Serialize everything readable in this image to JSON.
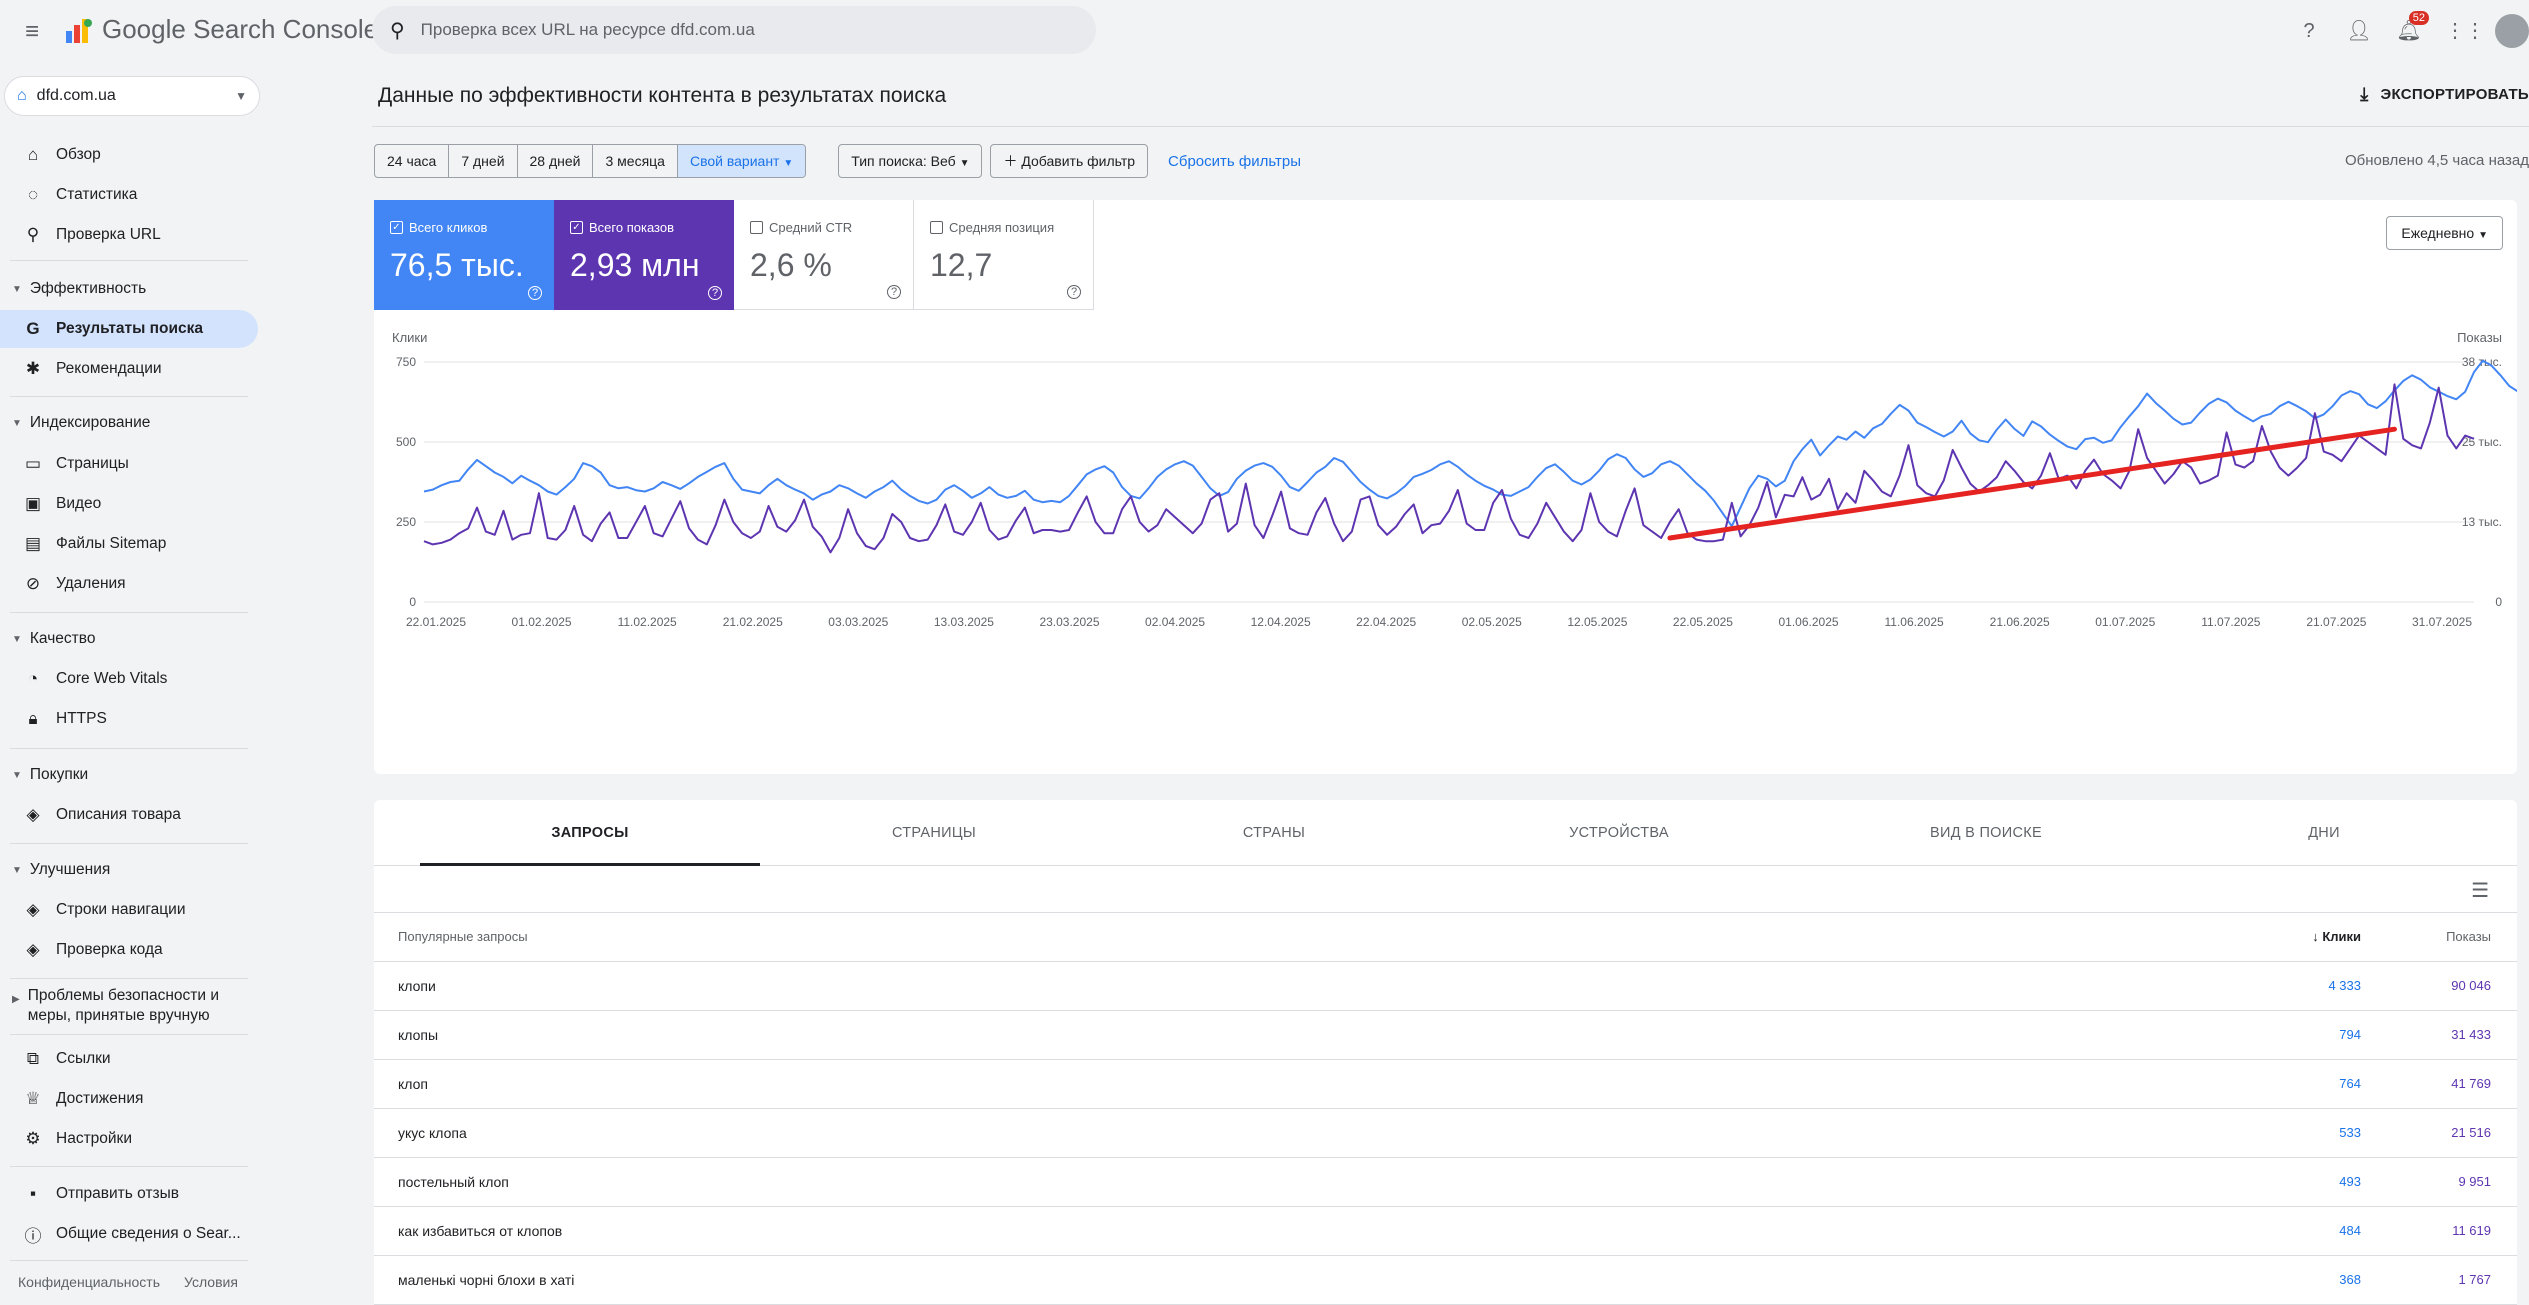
{
  "app": {
    "name": "Google Search Console"
  },
  "property": {
    "name": "dfd.com.ua"
  },
  "search": {
    "placeholder": "Проверка всех URL на ресурсе dfd.com.ua"
  },
  "notifications": {
    "count": "52"
  },
  "sidebar": {
    "overview": "Обзор",
    "stats": "Статистика",
    "url_check": "Проверка URL",
    "sections": {
      "performance": "Эффективность",
      "indexing": "Индексирование",
      "quality": "Качество",
      "shopping": "Покупки",
      "enhancements": "Улучшения",
      "security": "Проблемы безопасности и меры, принятые вручную"
    },
    "items": {
      "search_results": "Результаты поиска",
      "recommendations": "Рекомендации",
      "pages": "Страницы",
      "video": "Видео",
      "sitemaps": "Файлы Sitemap",
      "removals": "Удаления",
      "cwv": "Core Web Vitals",
      "https": "HTTPS",
      "product_snippets": "Описания товара",
      "breadcrumbs": "Строки навигации",
      "code_check": "Проверка кода",
      "links": "Ссылки",
      "achievements": "Достижения",
      "settings": "Настройки",
      "feedback": "Отправить отзыв",
      "about": "Общие сведения о Sear..."
    },
    "footer": {
      "privacy": "Конфиденциальность",
      "terms": "Условия"
    }
  },
  "page": {
    "title": "Данные по эффективности контента в результатах поиска",
    "export": "ЭКСПОРТИРОВАТЬ",
    "updated": "Обновлено 4,5 часа назад"
  },
  "filters": {
    "ranges": [
      "24 часа",
      "7 дней",
      "28 дней",
      "3 месяца",
      "Свой вариант"
    ],
    "search_type": "Тип поиска: Веб",
    "add_filter": "Добавить фильтр",
    "reset": "Сбросить фильтры"
  },
  "metrics": [
    {
      "label": "Всего кликов",
      "value": "76,5 тыс.",
      "checked": true
    },
    {
      "label": "Всего показов",
      "value": "2,93 млн",
      "checked": true
    },
    {
      "label": "Средний CTR",
      "value": "2,6 %",
      "checked": false
    },
    {
      "label": "Средняя позиция",
      "value": "12,7",
      "checked": false
    }
  ],
  "granularity": "Ежедневно",
  "chart_data": {
    "type": "line",
    "left_axis_label": "Клики",
    "right_axis_label": "Показы",
    "left_ticks": [
      "750",
      "500",
      "250",
      "0"
    ],
    "right_ticks": [
      "38 тыс.",
      "25 тыс.",
      "13 тыс.",
      "0"
    ],
    "x_ticks": [
      "22.01.2025",
      "01.02.2025",
      "11.02.2025",
      "21.02.2025",
      "03.03.2025",
      "13.03.2025",
      "23.03.2025",
      "02.04.2025",
      "12.04.2025",
      "22.04.2025",
      "02.05.2025",
      "12.05.2025",
      "22.05.2025",
      "01.06.2025",
      "11.06.2025",
      "21.06.2025",
      "01.07.2025",
      "11.07.2025",
      "21.07.2025",
      "31.07.2025"
    ],
    "ylim_left": [
      0,
      750
    ],
    "ylim_right": [
      0,
      38000
    ],
    "colors": {
      "clicks": "#5e35b1",
      "impressions": "#4285f4",
      "trend": "#e52421"
    },
    "series": [
      {
        "name": "Клики",
        "axis": "left",
        "values": [
          190,
          180,
          185,
          195,
          215,
          230,
          295,
          220,
          210,
          285,
          195,
          210,
          215,
          340,
          200,
          195,
          225,
          300,
          210,
          190,
          245,
          280,
          200,
          200,
          250,
          300,
          215,
          205,
          260,
          315,
          230,
          195,
          180,
          240,
          320,
          250,
          215,
          200,
          220,
          300,
          235,
          220,
          255,
          320,
          235,
          205,
          155,
          200,
          290,
          215,
          175,
          165,
          200,
          275,
          250,
          200,
          190,
          195,
          240,
          305,
          220,
          210,
          250,
          310,
          225,
          195,
          205,
          255,
          295,
          215,
          225,
          225,
          220,
          225,
          280,
          330,
          250,
          215,
          215,
          290,
          330,
          250,
          220,
          240,
          290,
          265,
          240,
          215,
          245,
          320,
          340,
          220,
          245,
          370,
          240,
          200,
          270,
          345,
          230,
          215,
          210,
          280,
          325,
          245,
          190,
          220,
          320,
          330,
          240,
          210,
          235,
          275,
          305,
          215,
          240,
          245,
          285,
          350,
          245,
          225,
          225,
          310,
          350,
          260,
          210,
          200,
          245,
          310,
          265,
          220,
          190,
          225,
          340,
          250,
          220,
          205,
          285,
          355,
          240,
          220,
          200,
          250,
          290,
          215,
          195,
          190,
          190,
          195,
          310,
          205,
          240,
          295,
          375,
          265,
          335,
          330,
          390,
          320,
          335,
          385,
          290,
          340,
          310,
          410,
          380,
          345,
          330,
          395,
          490,
          365,
          340,
          330,
          380,
          475,
          420,
          370,
          345,
          365,
          390,
          440,
          410,
          375,
          355,
          395,
          465,
          385,
          395,
          355,
          410,
          445,
          400,
          380,
          355,
          410,
          540,
          450,
          410,
          370,
          400,
          440,
          420,
          370,
          380,
          395,
          530,
          430,
          420,
          440,
          550,
          470,
          420,
          395,
          420,
          450,
          590,
          470,
          460,
          440,
          480,
          520,
          500,
          480,
          460,
          680,
          510,
          490,
          480,
          560,
          670,
          520,
          480,
          520,
          510
        ]
      },
      {
        "name": "Показы",
        "axis": "right",
        "values": [
          17500,
          17800,
          18500,
          19000,
          19200,
          21000,
          22500,
          21500,
          20500,
          19800,
          18800,
          20000,
          19200,
          18500,
          17500,
          17000,
          18200,
          19500,
          22000,
          21500,
          20500,
          18500,
          18000,
          18200,
          17700,
          17500,
          18000,
          19000,
          18500,
          17900,
          18800,
          19800,
          20600,
          21400,
          22000,
          19500,
          17800,
          17500,
          17200,
          18500,
          19500,
          18500,
          17800,
          17200,
          16200,
          17000,
          17500,
          18500,
          18000,
          17200,
          16500,
          17500,
          18200,
          19200,
          17800,
          16800,
          16000,
          15600,
          16200,
          17800,
          18500,
          17600,
          16500,
          17200,
          18200,
          17000,
          16500,
          16800,
          17600,
          16200,
          15800,
          16000,
          15800,
          16800,
          18500,
          20200,
          21000,
          21500,
          20500,
          18200,
          16800,
          16400,
          18000,
          19800,
          21000,
          21800,
          22300,
          21600,
          19800,
          18000,
          16800,
          17400,
          19500,
          20800,
          21600,
          22000,
          21400,
          20000,
          18200,
          17600,
          19000,
          20500,
          21400,
          22800,
          22200,
          20600,
          19000,
          17800,
          16800,
          16400,
          17200,
          18300,
          19800,
          20300,
          20900,
          21800,
          22300,
          21400,
          20200,
          19200,
          18400,
          17800,
          17000,
          16800,
          17500,
          18200,
          19800,
          21200,
          21800,
          20600,
          19200,
          18600,
          19400,
          20800,
          22600,
          23400,
          22800,
          21000,
          19800,
          20400,
          21800,
          22300,
          21600,
          20200,
          18800,
          17600,
          16000,
          14000,
          12000,
          15000,
          18000,
          20000,
          19500,
          18300,
          19200,
          22300,
          24200,
          25700,
          23200,
          24800,
          26200,
          25700,
          27000,
          26000,
          27500,
          28200,
          29800,
          31200,
          30300,
          28400,
          27700,
          26900,
          26200,
          27000,
          28700,
          26700,
          25600,
          25300,
          27300,
          28900,
          27400,
          26300,
          28600,
          27800,
          26500,
          25500,
          24600,
          24200,
          25800,
          26000,
          25200,
          25600,
          27700,
          29400,
          31000,
          33000,
          31500,
          30300,
          29000,
          28100,
          28400,
          30000,
          31400,
          32200,
          31600,
          30300,
          29400,
          28600,
          29400,
          29800,
          31000,
          31700,
          31000,
          30200,
          29100,
          29700,
          31000,
          32700,
          33400,
          32900,
          31300,
          30700,
          31800,
          33500,
          35000,
          35900,
          35200,
          34000,
          33300,
          32600,
          32100,
          33300,
          36400,
          38200,
          37400,
          35900,
          34200,
          33300,
          33000
        ]
      },
      {
        "name": "trend",
        "axis": "left",
        "values": [
          200,
          540
        ]
      }
    ],
    "trend_start_index": 141,
    "trend_end_index": 223
  },
  "tabs": [
    "ЗАПРОСЫ",
    "СТРАНИЦЫ",
    "СТРАНЫ",
    "УСТРОЙСТВА",
    "ВИД В ПОИСКЕ",
    "ДНИ"
  ],
  "table": {
    "col_query": "Популярные запросы",
    "col_clicks": "Клики",
    "col_impressions": "Показы",
    "rows": [
      {
        "query": "клопи",
        "clicks": "4 333",
        "impressions": "90 046"
      },
      {
        "query": "клопы",
        "clicks": "794",
        "impressions": "31 433"
      },
      {
        "query": "клоп",
        "clicks": "764",
        "impressions": "41 769"
      },
      {
        "query": "укус клопа",
        "clicks": "533",
        "impressions": "21 516"
      },
      {
        "query": "постельный клоп",
        "clicks": "493",
        "impressions": "9 951"
      },
      {
        "query": "как избавиться от клопов",
        "clicks": "484",
        "impressions": "11 619"
      },
      {
        "query": "маленькі чорні блохи в хаті",
        "clicks": "368",
        "impressions": "1 767"
      }
    ]
  }
}
